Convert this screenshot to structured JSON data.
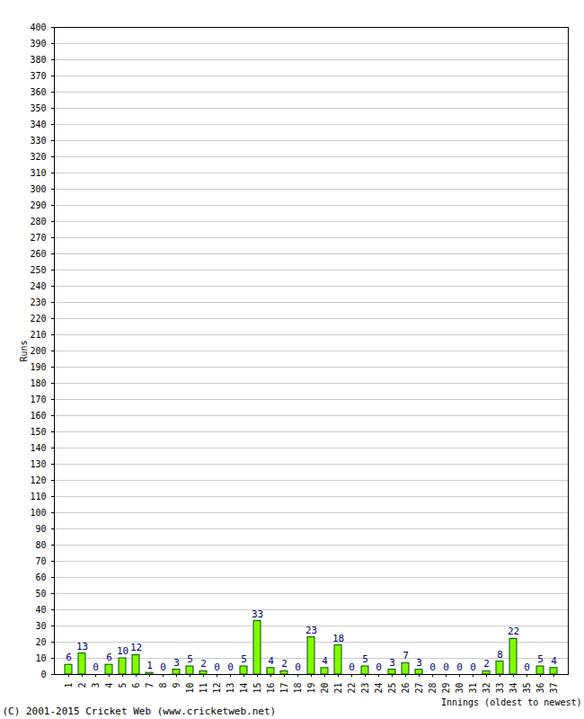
{
  "chart_data": {
    "type": "bar",
    "x_label": "Innings (oldest to newest)",
    "y_label": "Runs",
    "annotations": [
      "(C) 2001-2015 Cricket Web (www.cricketweb.net)"
    ],
    "categories": [
      "1",
      "2",
      "3",
      "4",
      "5",
      "6",
      "7",
      "8",
      "9",
      "10",
      "11",
      "12",
      "13",
      "14",
      "15",
      "16",
      "17",
      "18",
      "19",
      "20",
      "21",
      "22",
      "23",
      "24",
      "25",
      "26",
      "27",
      "28",
      "29",
      "30",
      "31",
      "32",
      "33",
      "34",
      "35",
      "36",
      "37"
    ],
    "values": [
      6,
      13,
      0,
      6,
      10,
      12,
      1,
      0,
      3,
      5,
      2,
      0,
      0,
      5,
      33,
      4,
      2,
      0,
      23,
      4,
      18,
      0,
      5,
      0,
      3,
      7,
      3,
      0,
      0,
      0,
      0,
      2,
      8,
      22,
      0,
      5,
      4
    ],
    "color": "#80ff00",
    "ylim": [
      0,
      400
    ],
    "yticks": [
      0,
      10,
      20,
      30,
      40,
      50,
      60,
      70,
      80,
      90,
      100,
      110,
      120,
      130,
      140,
      150,
      160,
      170,
      180,
      190,
      200,
      210,
      220,
      230,
      240,
      250,
      260,
      270,
      280,
      290,
      300,
      310,
      320,
      330,
      340,
      350,
      360,
      370,
      380,
      390,
      400
    ],
    "grid": true,
    "data_labels": true
  }
}
